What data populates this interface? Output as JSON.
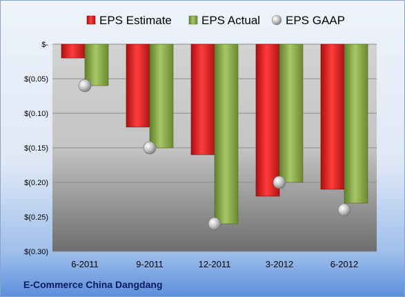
{
  "chart_data": {
    "type": "bar",
    "subtitle": "E-Commerce China Dangdang",
    "categories": [
      "6-2011",
      "9-2011",
      "12-2011",
      "3-2012",
      "6-2012"
    ],
    "series": [
      {
        "name": "EPS Estimate",
        "kind": "bar",
        "color": "#d42a2a",
        "values": [
          -0.02,
          -0.12,
          -0.16,
          -0.22,
          -0.21
        ]
      },
      {
        "name": "EPS Actual",
        "kind": "bar",
        "color": "#8db04a",
        "values": [
          -0.06,
          -0.15,
          -0.26,
          -0.2,
          -0.23
        ]
      },
      {
        "name": "EPS GAAP",
        "kind": "marker",
        "color": "#b8b8b8",
        "values": [
          -0.06,
          -0.15,
          -0.26,
          -0.2,
          -0.24
        ]
      }
    ],
    "ylim": [
      -0.3,
      0
    ],
    "yticks": [
      0,
      -0.05,
      -0.1,
      -0.15,
      -0.2,
      -0.25,
      -0.3
    ],
    "ytick_labels": [
      "$-",
      "$(0.05)",
      "$(0.10)",
      "$(0.15)",
      "$(0.20)",
      "$(0.25)",
      "$(0.30)"
    ],
    "legend_position": "top",
    "grid": true
  }
}
